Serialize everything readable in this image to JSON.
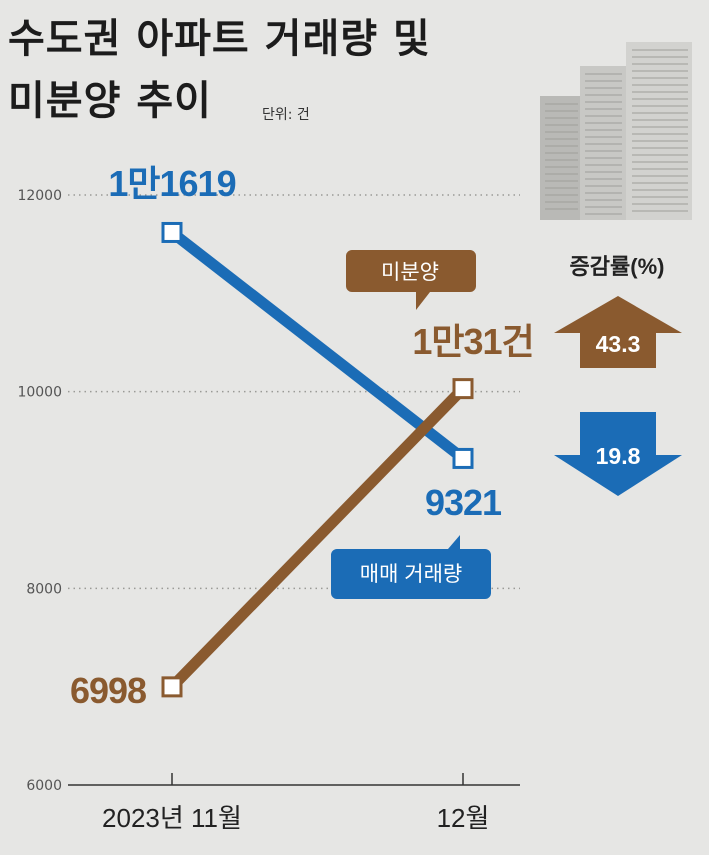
{
  "title_line1": "수도권 아파트 거래량 및",
  "title_line2": "미분양 추이",
  "unit_label": "단위: 건",
  "colors": {
    "sales": "#1b6cb6",
    "unsold": "#8a5a2f",
    "background": "#e6e6e4",
    "text": "#1c1c1c"
  },
  "chart_data": {
    "type": "line",
    "categories": [
      "2023년 11월",
      "12월"
    ],
    "ylim": [
      6000,
      12000
    ],
    "yticks": [
      6000,
      8000,
      10000,
      12000
    ],
    "grid": "dotted horizontal",
    "series": [
      {
        "name": "매매 거래량",
        "values": [
          11619,
          9321
        ],
        "labels": [
          "1만1619",
          "9321"
        ],
        "color": "#1b6cb6"
      },
      {
        "name": "미분양",
        "values": [
          6998,
          10031
        ],
        "labels": [
          "6998",
          "1만31건"
        ],
        "color": "#8a5a2f"
      }
    ]
  },
  "change_panel": {
    "title": "증감률(%)",
    "items": [
      {
        "series": "미분양",
        "direction": "up",
        "value": "43.3",
        "color": "#8a5a2f"
      },
      {
        "series": "매매 거래량",
        "direction": "down",
        "value": "19.8",
        "color": "#1b6cb6"
      }
    ]
  }
}
